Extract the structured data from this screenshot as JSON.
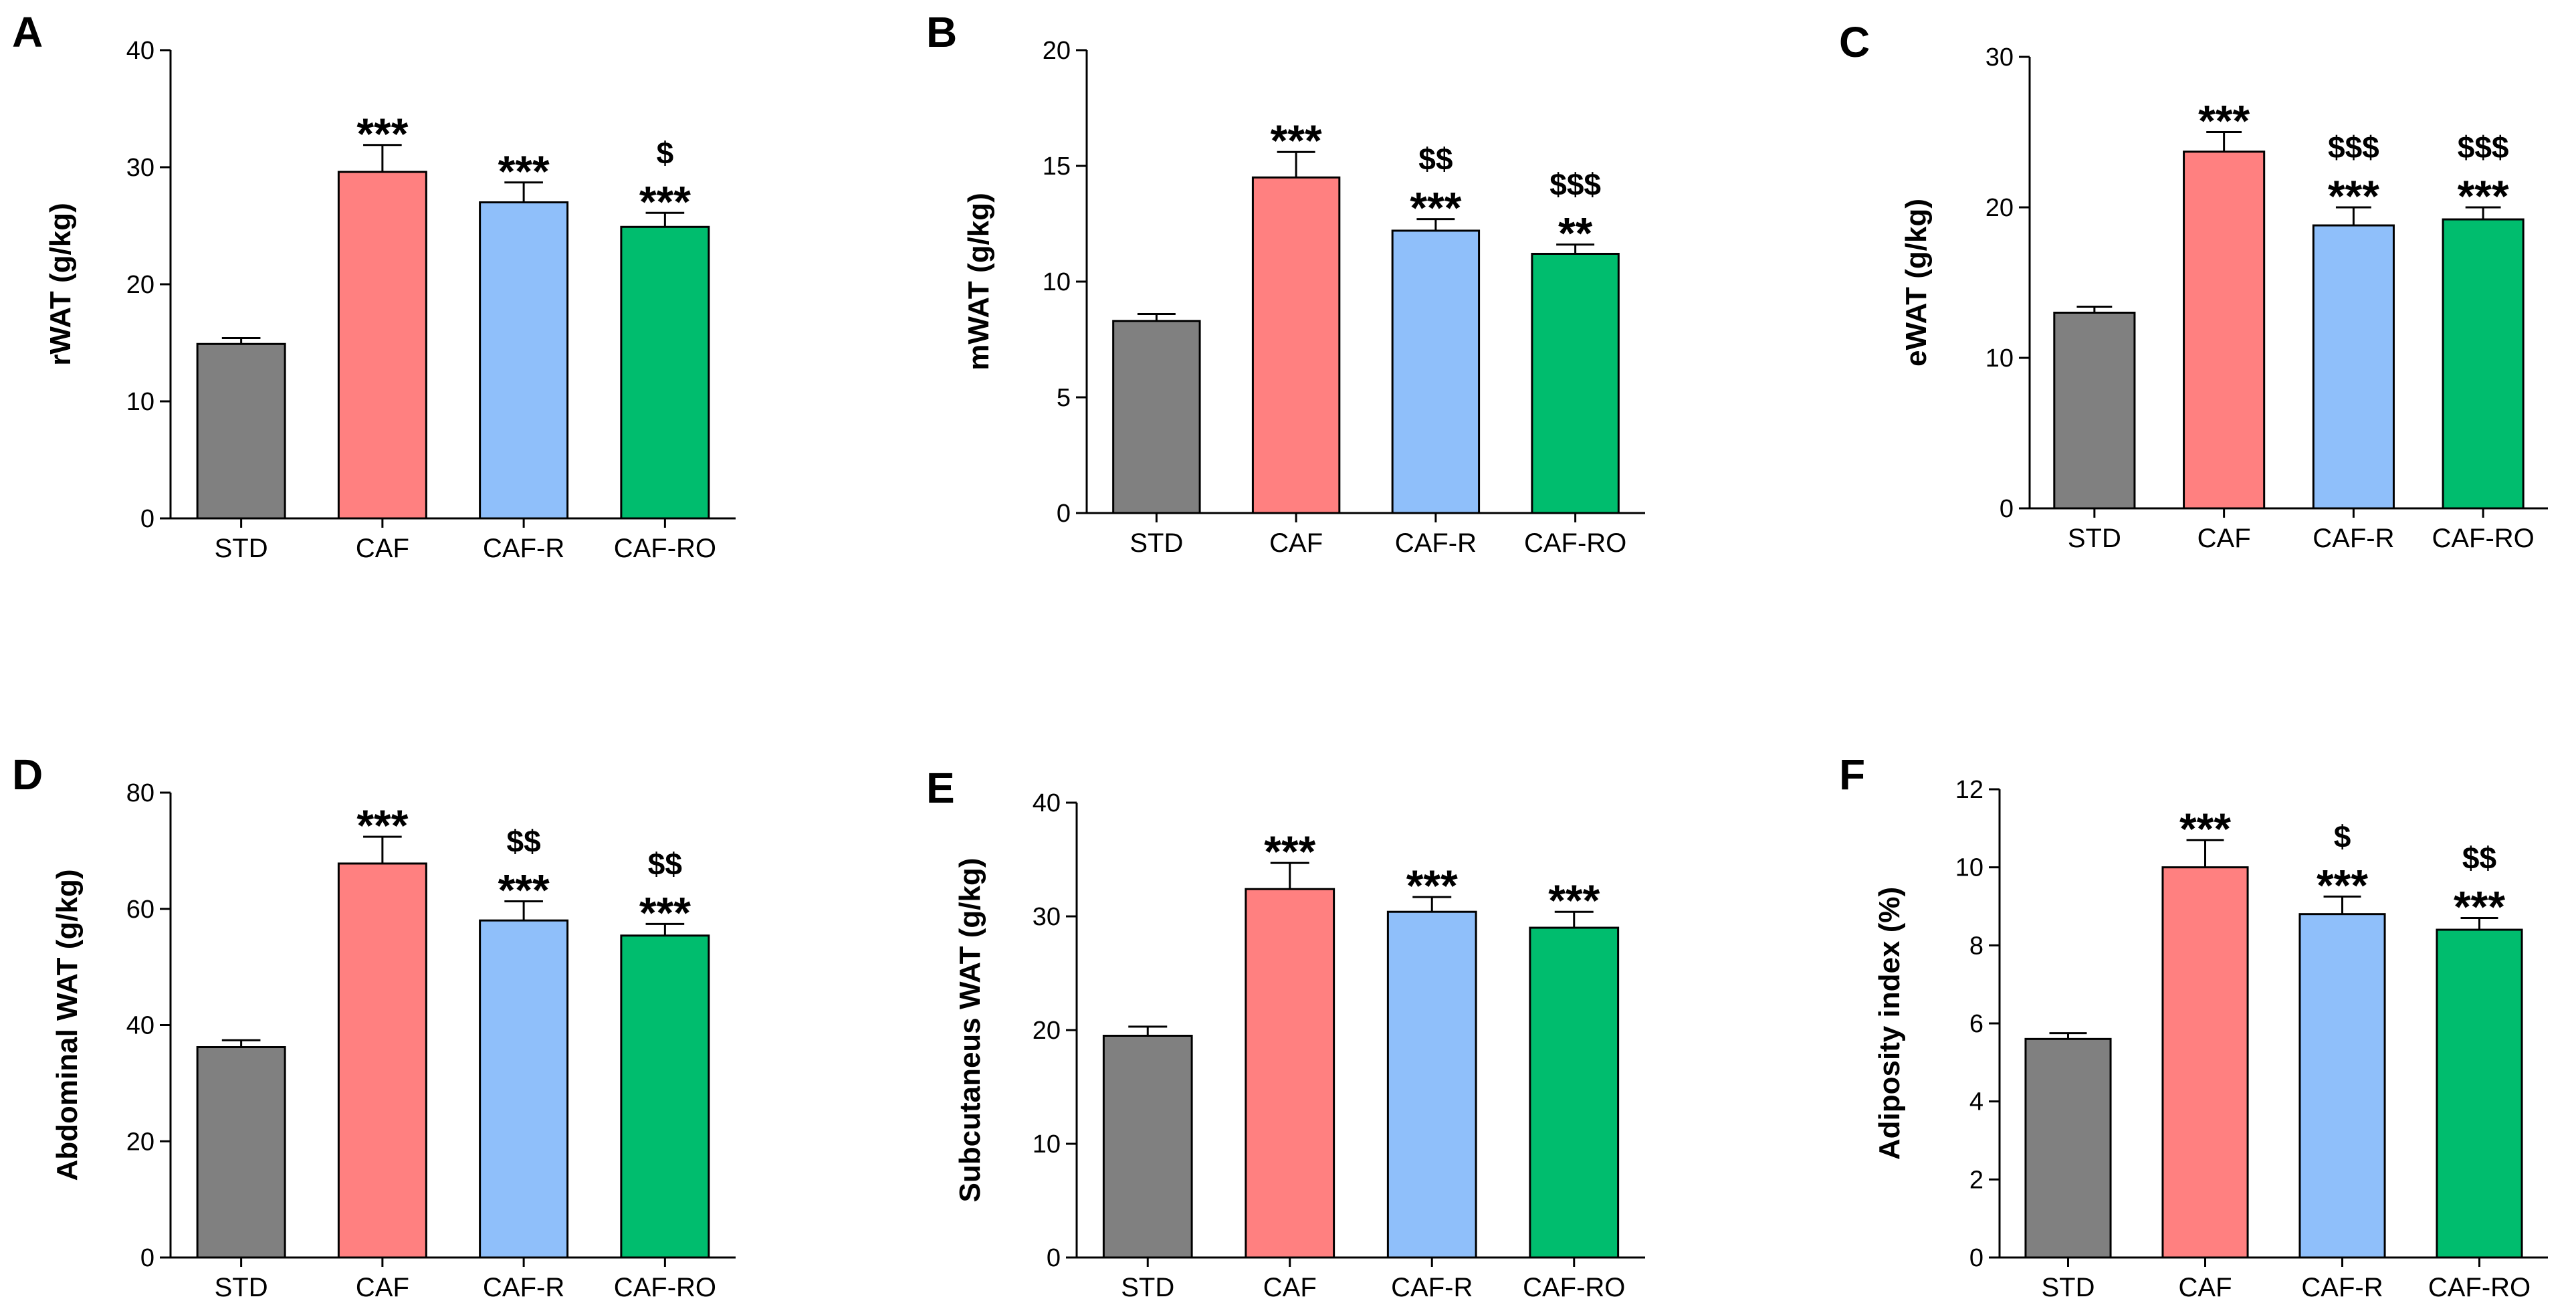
{
  "figure": {
    "categories": [
      "STD",
      "CAF",
      "CAF-R",
      "CAF-RO"
    ],
    "colors": [
      "#808080",
      "#ff8080",
      "#8fbffa",
      "#00bd6e"
    ]
  },
  "chart_data": [
    {
      "type": "bar",
      "panel_label": "A",
      "ylabel": "rWAT (g/kg)",
      "ylim": [
        0,
        40
      ],
      "yticks": [
        0,
        10,
        20,
        30,
        40
      ],
      "values": [
        14.9,
        29.6,
        27.0,
        24.9
      ],
      "errors": [
        0.5,
        2.3,
        1.7,
        1.2
      ],
      "sig_stars": [
        "",
        "***",
        "***",
        "***"
      ],
      "sig_dollars": [
        "",
        "",
        "",
        "$"
      ]
    },
    {
      "type": "bar",
      "panel_label": "B",
      "ylabel": "mWAT (g/kg)",
      "ylim": [
        0,
        20
      ],
      "yticks": [
        0,
        5,
        10,
        15,
        20
      ],
      "values": [
        8.3,
        14.5,
        12.2,
        11.2
      ],
      "errors": [
        0.3,
        1.1,
        0.5,
        0.4
      ],
      "sig_stars": [
        "",
        "***",
        "***",
        "**"
      ],
      "sig_dollars": [
        "",
        "",
        "$$",
        "$$$"
      ]
    },
    {
      "type": "bar",
      "panel_label": "C",
      "ylabel": "eWAT (g/kg)",
      "ylim": [
        0,
        30
      ],
      "yticks": [
        0,
        10,
        20,
        30
      ],
      "values": [
        13.0,
        23.7,
        18.8,
        19.2
      ],
      "errors": [
        0.4,
        1.3,
        1.2,
        0.8
      ],
      "sig_stars": [
        "",
        "***",
        "***",
        "***"
      ],
      "sig_dollars": [
        "",
        "",
        "$$$",
        "$$$"
      ]
    },
    {
      "type": "bar",
      "panel_label": "D",
      "ylabel": "Abdominal WAT (g/kg)",
      "ylim": [
        0,
        80
      ],
      "yticks": [
        0,
        20,
        40,
        60,
        80
      ],
      "values": [
        36.2,
        67.8,
        58.0,
        55.4
      ],
      "errors": [
        1.2,
        4.6,
        3.3,
        2.0
      ],
      "sig_stars": [
        "",
        "***",
        "***",
        "***"
      ],
      "sig_dollars": [
        "",
        "",
        "$$",
        "$$"
      ]
    },
    {
      "type": "bar",
      "panel_label": "E",
      "ylabel": "Subcutaneus WAT (g/kg)",
      "ylim": [
        0,
        40
      ],
      "yticks": [
        0,
        10,
        20,
        30,
        40
      ],
      "values": [
        19.5,
        32.4,
        30.4,
        29.0
      ],
      "errors": [
        0.8,
        2.3,
        1.3,
        1.4
      ],
      "sig_stars": [
        "",
        "***",
        "***",
        "***"
      ],
      "sig_dollars": [
        "",
        "",
        "",
        ""
      ]
    },
    {
      "type": "bar",
      "panel_label": "F",
      "ylabel": "Adiposity index (%)",
      "ylim": [
        0,
        12
      ],
      "yticks": [
        0,
        2,
        4,
        6,
        8,
        10,
        12
      ],
      "values": [
        5.6,
        10.0,
        8.8,
        8.4
      ],
      "errors": [
        0.15,
        0.7,
        0.45,
        0.3
      ],
      "sig_stars": [
        "",
        "***",
        "***",
        "***"
      ],
      "sig_dollars": [
        "",
        "",
        "$",
        "$$"
      ]
    }
  ]
}
